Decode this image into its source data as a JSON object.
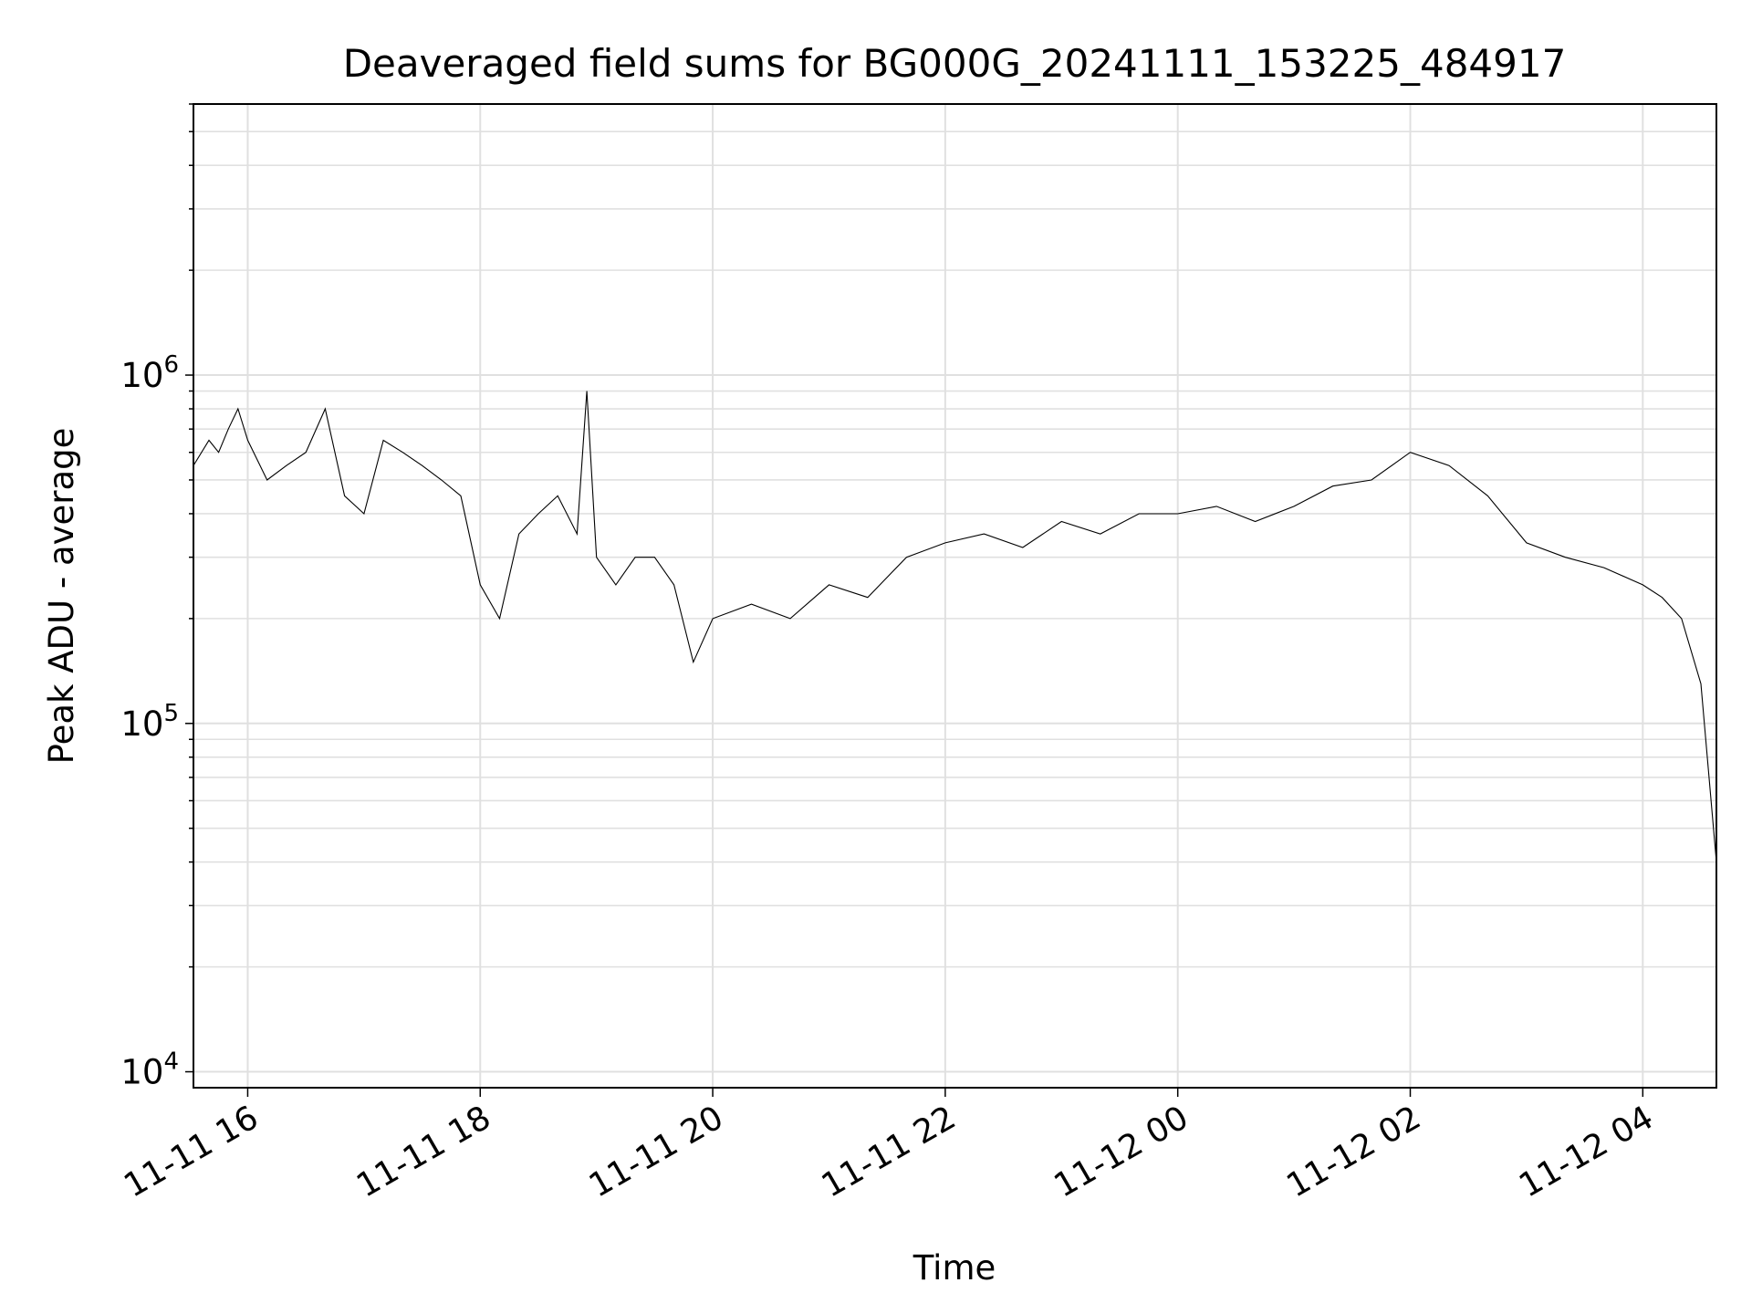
{
  "chart_data": {
    "type": "line",
    "title": "Deaveraged field sums for BG000G_20241111_153225_484917",
    "xlabel": "Time",
    "ylabel": "Peak ADU - average",
    "yscale": "log",
    "xlim": [
      "2024-11-11 15:32",
      "2024-11-12 04:38"
    ],
    "ylim": [
      9000,
      6000000
    ],
    "grid": true,
    "line_color": "#000000",
    "grid_color": "#e0e0e0",
    "x_ticks": [
      {
        "label": "11-11 16",
        "value": "2024-11-11 16:00"
      },
      {
        "label": "11-11 18",
        "value": "2024-11-11 18:00"
      },
      {
        "label": "11-11 20",
        "value": "2024-11-11 20:00"
      },
      {
        "label": "11-11 22",
        "value": "2024-11-11 22:00"
      },
      {
        "label": "11-12 00",
        "value": "2024-11-12 00:00"
      },
      {
        "label": "11-12 02",
        "value": "2024-11-12 02:00"
      },
      {
        "label": "11-12 04",
        "value": "2024-11-12 04:00"
      }
    ],
    "y_ticks": [
      {
        "value": 10000,
        "base": "10",
        "exp": "4"
      },
      {
        "value": 100000,
        "base": "10",
        "exp": "5"
      },
      {
        "value": 1000000,
        "base": "10",
        "exp": "6"
      }
    ],
    "series": [
      {
        "x": [
          "2024-11-11 15:32",
          "2024-11-11 15:40",
          "2024-11-11 15:45",
          "2024-11-11 15:50",
          "2024-11-11 15:55",
          "2024-11-11 16:00",
          "2024-11-11 16:10",
          "2024-11-11 16:20",
          "2024-11-11 16:30",
          "2024-11-11 16:40",
          "2024-11-11 16:50",
          "2024-11-11 17:00",
          "2024-11-11 17:10",
          "2024-11-11 17:20",
          "2024-11-11 17:30",
          "2024-11-11 17:40",
          "2024-11-11 17:50",
          "2024-11-11 18:00",
          "2024-11-11 18:10",
          "2024-11-11 18:20",
          "2024-11-11 18:30",
          "2024-11-11 18:40",
          "2024-11-11 18:50",
          "2024-11-11 18:55",
          "2024-11-11 19:00",
          "2024-11-11 19:10",
          "2024-11-11 19:20",
          "2024-11-11 19:30",
          "2024-11-11 19:40",
          "2024-11-11 19:50",
          "2024-11-11 20:00",
          "2024-11-11 20:20",
          "2024-11-11 20:40",
          "2024-11-11 21:00",
          "2024-11-11 21:20",
          "2024-11-11 21:40",
          "2024-11-11 22:00",
          "2024-11-11 22:20",
          "2024-11-11 22:40",
          "2024-11-11 23:00",
          "2024-11-11 23:20",
          "2024-11-11 23:40",
          "2024-11-12 00:00",
          "2024-11-12 00:20",
          "2024-11-12 00:40",
          "2024-11-12 01:00",
          "2024-11-12 01:20",
          "2024-11-12 01:40",
          "2024-11-12 02:00",
          "2024-11-12 02:20",
          "2024-11-12 02:40",
          "2024-11-12 03:00",
          "2024-11-12 03:20",
          "2024-11-12 03:40",
          "2024-11-12 04:00",
          "2024-11-12 04:10",
          "2024-11-12 04:20",
          "2024-11-12 04:30",
          "2024-11-12 04:38"
        ],
        "y": [
          550000,
          650000,
          600000,
          700000,
          800000,
          650000,
          500000,
          550000,
          600000,
          800000,
          450000,
          400000,
          650000,
          600000,
          550000,
          500000,
          450000,
          250000,
          200000,
          350000,
          400000,
          450000,
          350000,
          900000,
          300000,
          250000,
          300000,
          300000,
          250000,
          150000,
          200000,
          220000,
          200000,
          250000,
          230000,
          300000,
          330000,
          350000,
          320000,
          380000,
          350000,
          400000,
          400000,
          420000,
          380000,
          420000,
          480000,
          500000,
          600000,
          550000,
          450000,
          330000,
          300000,
          280000,
          250000,
          230000,
          200000,
          130000,
          40000
        ]
      }
    ]
  }
}
